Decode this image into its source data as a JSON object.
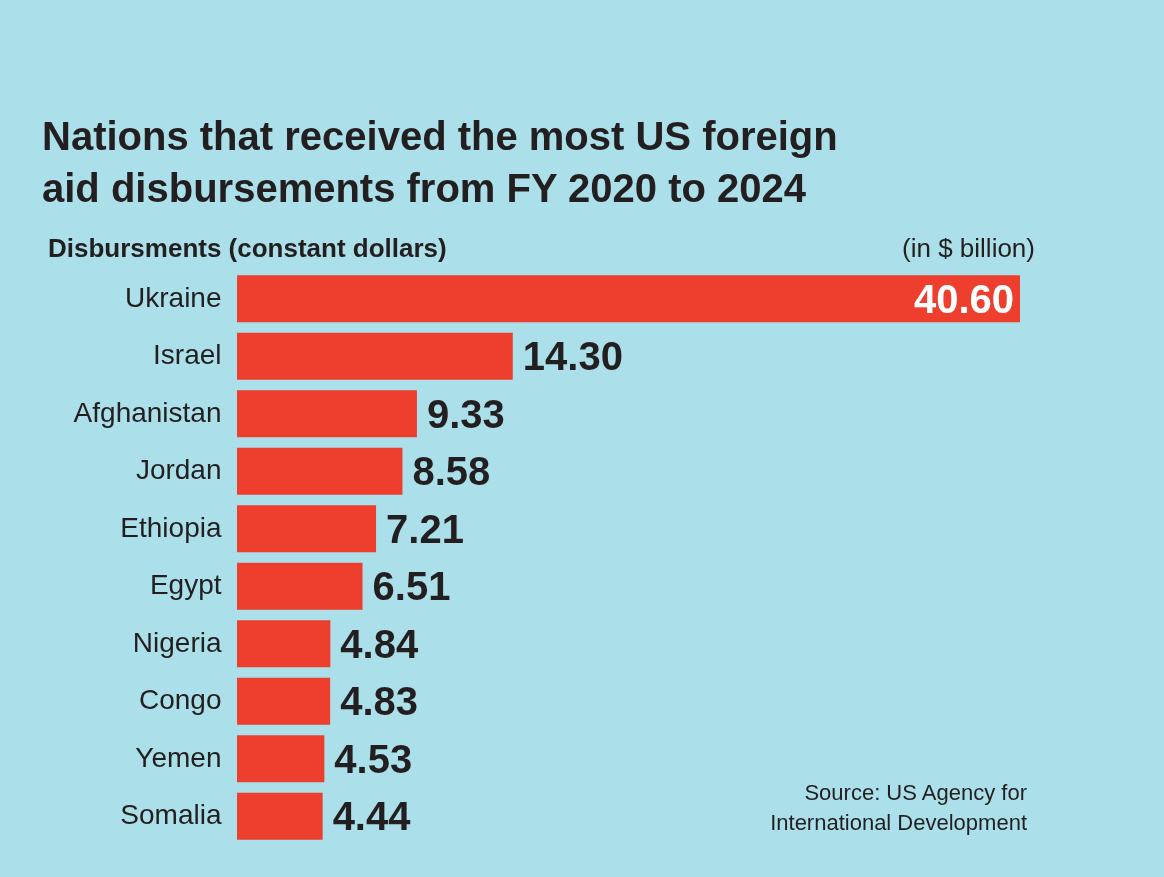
{
  "chart_data": {
    "type": "bar",
    "orientation": "horizontal",
    "title": "Nations that received the most US foreign aid disbursements from FY 2020 to 2024",
    "subtitle": "Disbursments (constant dollars)",
    "xlabel": "(in $ billion)",
    "categories": [
      "Ukraine",
      "Israel",
      "Afghanistan",
      "Jordan",
      "Ethiopia",
      "Egypt",
      "Nigeria",
      "Congo",
      "Yemen",
      "Somalia"
    ],
    "values": [
      40.6,
      14.3,
      9.33,
      8.58,
      7.21,
      6.51,
      4.84,
      4.83,
      4.53,
      4.44
    ],
    "value_labels": [
      "40.60",
      "14.30",
      "9.33",
      "8.58",
      "7.21",
      "6.51",
      "4.84",
      "4.83",
      "4.53",
      "4.44"
    ],
    "color": "#ee3e2d",
    "annotations": [
      "Source: US Agency for International Development"
    ]
  }
}
